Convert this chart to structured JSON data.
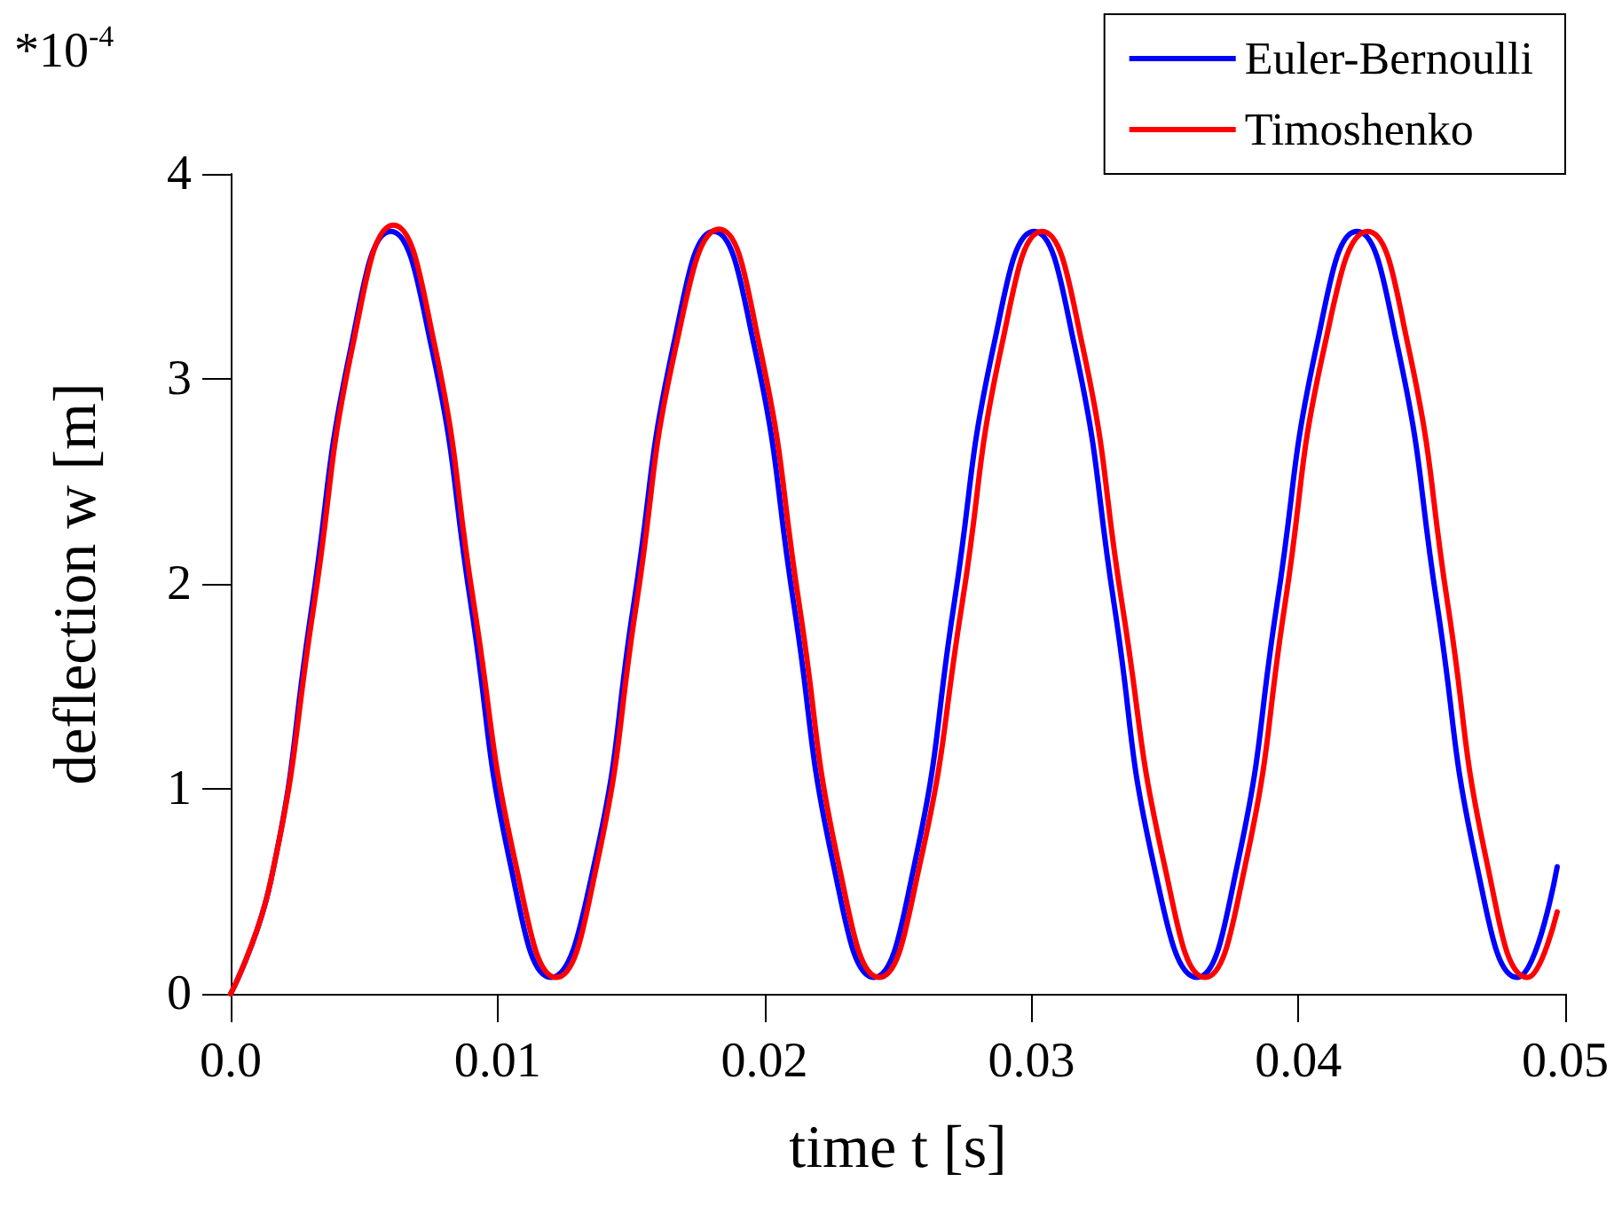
{
  "chart_data": {
    "type": "line",
    "xlabel": "time t [s]",
    "ylabel": "deflection w [m]",
    "annotations": [
      "*10$^{-4}$"
    ],
    "xlim": [
      0,
      0.05
    ],
    "xticks": [
      {
        "value": 0,
        "label": "0.0"
      },
      0.01,
      0.02,
      0.03,
      0.04,
      0.05
    ],
    "ylim": [
      0,
      4
    ],
    "yticks": [
      0,
      1,
      2,
      3,
      4
    ],
    "grid": false,
    "legend": "top right",
    "marker": "none",
    "line_style": "solid",
    "series": [
      {
        "name": "Euler-Bernoulli",
        "color": "#0000ff",
        "x": [
          0,
          0.0015,
          0.003,
          0.0045,
          0.006,
          0.0075,
          0.009,
          0.0105,
          0.012,
          0.0136,
          0.0151,
          0.0166,
          0.0181,
          0.0196,
          0.0211,
          0.0226,
          0.0241,
          0.0256,
          0.0271,
          0.0286,
          0.0301,
          0.0316,
          0.0331,
          0.0346,
          0.0362,
          0.0377,
          0.0392,
          0.0407,
          0.0422,
          0.0437,
          0.0452,
          0.0467,
          0.0482,
          0.0497
        ],
        "values": [
          0,
          0.55,
          1.85,
          3.15,
          3.72,
          3.17,
          1.9,
          0.62,
          0.08,
          0.62,
          1.9,
          3.17,
          3.72,
          3.17,
          1.9,
          0.62,
          0.08,
          0.62,
          1.9,
          3.17,
          3.72,
          3.17,
          1.9,
          0.62,
          0.08,
          0.62,
          1.9,
          3.17,
          3.72,
          3.17,
          1.9,
          0.62,
          0.08,
          0.62
        ]
      },
      {
        "name": "Timoshenko",
        "color": "#ff0000",
        "x": [
          0,
          0.0015,
          0.0031,
          0.0046,
          0.0061,
          0.0076,
          0.0091,
          0.0107,
          0.0122,
          0.0137,
          0.0152,
          0.0167,
          0.0183,
          0.0198,
          0.0213,
          0.0228,
          0.0243,
          0.0258,
          0.0274,
          0.0289,
          0.0304,
          0.0319,
          0.0334,
          0.035,
          0.0365,
          0.038,
          0.0395,
          0.041,
          0.0426,
          0.0441,
          0.0456,
          0.0471,
          0.0486,
          0.0497
        ],
        "values": [
          0,
          0.55,
          1.88,
          3.18,
          3.75,
          3.19,
          1.91,
          0.62,
          0.08,
          0.62,
          1.9,
          3.17,
          3.73,
          3.17,
          1.9,
          0.62,
          0.08,
          0.62,
          1.9,
          3.17,
          3.72,
          3.17,
          1.9,
          0.62,
          0.08,
          0.62,
          1.9,
          3.17,
          3.72,
          3.17,
          1.9,
          0.62,
          0.08,
          0.4
        ]
      }
    ]
  }
}
